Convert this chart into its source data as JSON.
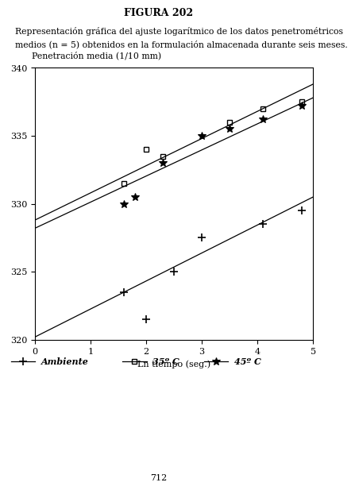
{
  "title": "FIGURA 202",
  "caption_line1": "Representación gráfica del ajuste logarítmico de los datos penetrométricos",
  "caption_line2": "medios (n = 5) obtenidos en la formulación almacenada durante seis meses.",
  "xlabel": "Ln tiempo (seg.)",
  "ylabel": "Penetración media (1/10 mm)",
  "xlim": [
    0,
    5
  ],
  "ylim": [
    320,
    340
  ],
  "yticks": [
    320,
    325,
    330,
    335,
    340
  ],
  "xticks": [
    0,
    1,
    2,
    3,
    4,
    5
  ],
  "background_color": "#ffffff",
  "ambiente": {
    "points_x": [
      1.6,
      2.0,
      2.5,
      3.0,
      4.1,
      4.8
    ],
    "points_y": [
      323.5,
      321.5,
      325.0,
      327.5,
      328.5,
      329.5
    ],
    "line_x0": 0,
    "line_y0": 320.2,
    "line_x1": 5,
    "line_y1": 330.5
  },
  "temp35": {
    "points_x": [
      1.6,
      2.0,
      2.3,
      3.5,
      4.1,
      4.8
    ],
    "points_y": [
      331.5,
      334.0,
      333.5,
      336.0,
      337.0,
      337.5
    ],
    "line_x0": 0,
    "line_y0": 328.8,
    "line_x1": 5,
    "line_y1": 338.8
  },
  "temp45": {
    "points_x": [
      1.6,
      1.8,
      2.3,
      3.0,
      3.5,
      4.1,
      4.8
    ],
    "points_y": [
      330.0,
      330.5,
      333.0,
      335.0,
      335.5,
      336.2,
      337.2
    ],
    "line_x0": 0,
    "line_y0": 328.2,
    "line_x1": 5,
    "line_y1": 337.8
  },
  "legend_labels": [
    "Ambiente",
    "35º C",
    "45º C"
  ],
  "page_number": "712"
}
